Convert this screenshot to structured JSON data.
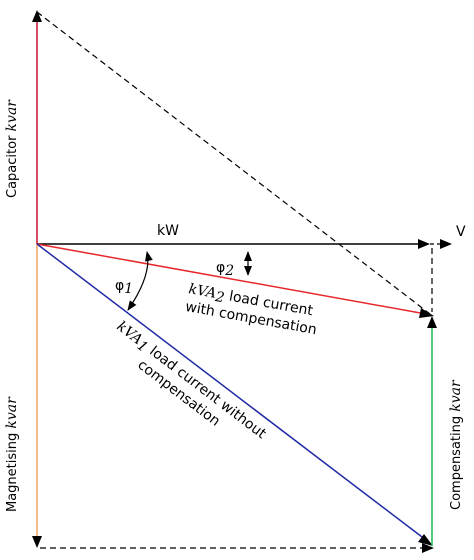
{
  "labels": {
    "kw": "kW",
    "v": "V",
    "phi1": "φ",
    "phi1_sub": "1",
    "phi2": "φ",
    "phi2_sub": "2",
    "kva2_main": "kVA",
    "kva2_sub": "2",
    "kva2_rest": " load current",
    "kva2_line2": "with compensation",
    "kva1_main": "kVA",
    "kva1_sub": "1",
    "kva1_rest": " load current without",
    "kva1_line2": "compensation",
    "capacitor": "Capacitor ",
    "capacitor_unit": "kvar",
    "magnetising": "Magnetising ",
    "magnetising_unit": "kvar",
    "compensating": "Compensating ",
    "compensating_unit": "kvar"
  },
  "colors": {
    "capacitor": "#c8102e",
    "magnetising": "#f4a460",
    "compensating": "#1db954",
    "kva2": "#e8272b",
    "kva1": "#1f2aa5",
    "black": "#000000"
  }
}
